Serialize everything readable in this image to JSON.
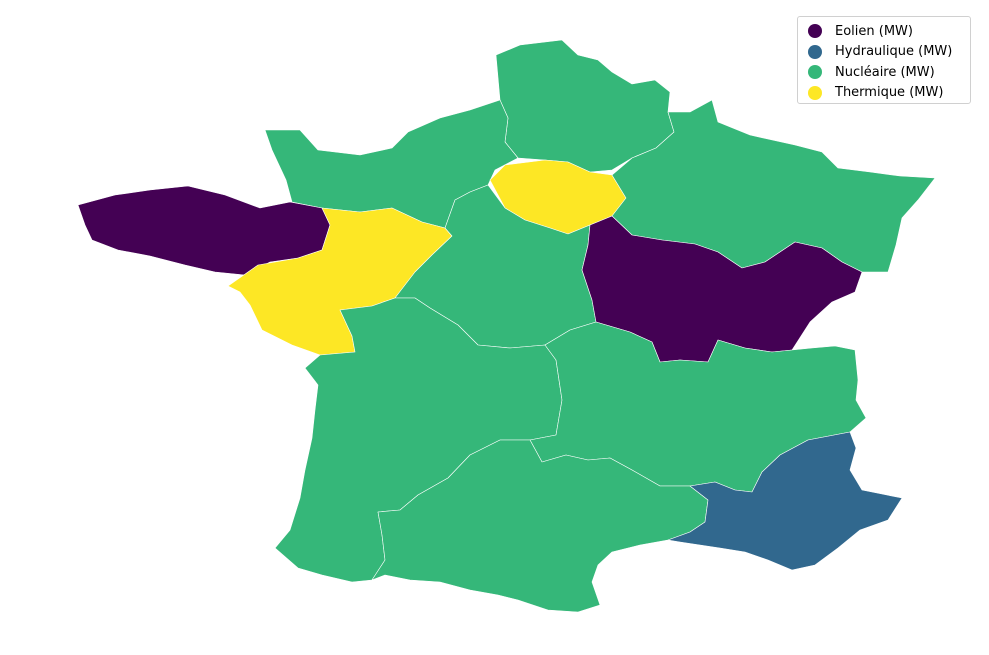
{
  "colors": {
    "eolien": "#440154",
    "hydraulique": "#31688e",
    "nucleaire": "#35b779",
    "thermique": "#fde725"
  },
  "legend": {
    "items": [
      {
        "key": "eolien",
        "label": "Eolien (MW)",
        "color": "#440154"
      },
      {
        "key": "hydraulique",
        "label": "Hydraulique (MW)",
        "color": "#31688e"
      },
      {
        "key": "nucleaire",
        "label": "Nucléaire (MW)",
        "color": "#35b779"
      },
      {
        "key": "thermique",
        "label": "Thermique (MW)",
        "color": "#fde725"
      }
    ]
  },
  "regions": [
    {
      "name": "Hauts-de-France",
      "category": "nucleaire"
    },
    {
      "name": "Normandie",
      "category": "nucleaire"
    },
    {
      "name": "Île-de-France",
      "category": "thermique"
    },
    {
      "name": "Grand Est",
      "category": "nucleaire"
    },
    {
      "name": "Bretagne",
      "category": "eolien"
    },
    {
      "name": "Pays de la Loire",
      "category": "thermique"
    },
    {
      "name": "Centre-Val de Loire",
      "category": "nucleaire"
    },
    {
      "name": "Bourgogne-Franche-Comté",
      "category": "eolien"
    },
    {
      "name": "Nouvelle-Aquitaine",
      "category": "nucleaire"
    },
    {
      "name": "Auvergne-Rhône-Alpes",
      "category": "nucleaire"
    },
    {
      "name": "Occitanie",
      "category": "nucleaire"
    },
    {
      "name": "Provence-Alpes-Côte d'Azur",
      "category": "hydraulique"
    }
  ]
}
